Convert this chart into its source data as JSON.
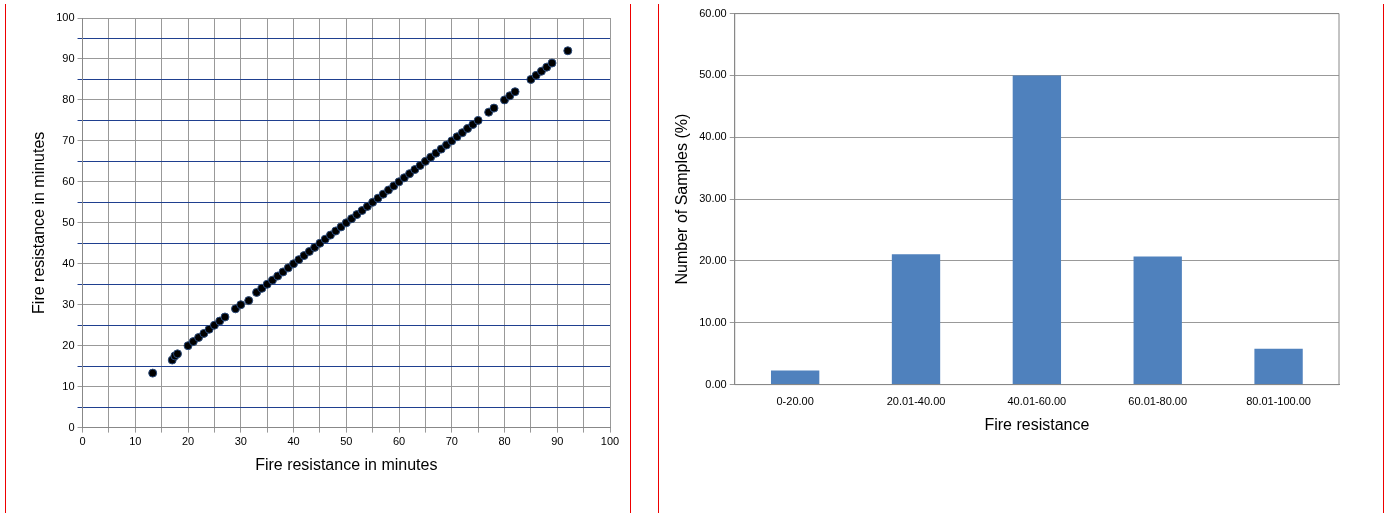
{
  "chart_data": [
    {
      "type": "scatter",
      "xlabel": "Fire resistance in minutes",
      "ylabel": "Fire resistance in minutes",
      "color": "#000000",
      "marker": "circle",
      "grid": true,
      "x": [
        13.3,
        17,
        17.5,
        18,
        20,
        21,
        22,
        23,
        24,
        25,
        26,
        27,
        29,
        30,
        31.5,
        33,
        34,
        35,
        36,
        37,
        38,
        39,
        40,
        41,
        42,
        43,
        44,
        45,
        46,
        47,
        48,
        49,
        50,
        51,
        52,
        53,
        54,
        55,
        56,
        57,
        58,
        59,
        60,
        61,
        62,
        63,
        64,
        65,
        66,
        67,
        68,
        69,
        70,
        71,
        72,
        73,
        74,
        75,
        77,
        78,
        80,
        81,
        82,
        85,
        86,
        87,
        88,
        89,
        92
      ],
      "values": [
        13.3,
        16.5,
        17.5,
        18,
        20,
        21,
        22,
        23,
        24,
        25,
        26,
        27,
        29,
        30,
        31,
        33,
        34,
        35,
        36,
        37,
        38,
        39,
        40,
        41,
        42,
        43,
        44,
        45,
        46,
        47,
        48,
        49,
        50,
        51,
        52,
        53,
        54,
        55,
        56,
        57,
        58,
        59,
        60,
        61,
        62,
        63,
        64,
        65,
        66,
        67,
        68,
        69,
        70,
        71,
        72,
        73,
        74,
        75,
        77,
        78,
        80,
        81,
        82,
        85,
        86,
        87,
        88,
        89,
        92
      ],
      "xlim": [
        0,
        100
      ],
      "ylim": [
        0,
        100
      ],
      "xticks": [
        0,
        {
          "value": 5,
          "label": null
        },
        10,
        {
          "value": 15,
          "label": null
        },
        20,
        {
          "value": 25,
          "label": null
        },
        30,
        {
          "value": 35,
          "label": null
        },
        40,
        {
          "value": 45,
          "label": null
        },
        50,
        {
          "value": 55,
          "label": null
        },
        60,
        {
          "value": 65,
          "label": null
        },
        70,
        {
          "value": 75,
          "label": null
        },
        80,
        {
          "value": 85,
          "label": null
        },
        90,
        {
          "value": 95,
          "label": null
        },
        100
      ],
      "yticks": [
        0,
        {
          "value": 5,
          "label": null
        },
        10,
        {
          "value": 15,
          "label": null
        },
        20,
        {
          "value": 25,
          "label": null
        },
        30,
        {
          "value": 35,
          "label": null
        },
        40,
        {
          "value": 45,
          "label": null
        },
        50,
        {
          "value": 55,
          "label": null
        },
        60,
        {
          "value": 65,
          "label": null
        },
        70,
        {
          "value": 75,
          "label": null
        },
        80,
        {
          "value": 85,
          "label": null
        },
        90,
        {
          "value": 95,
          "label": null
        },
        100
      ]
    },
    {
      "type": "bar",
      "xlabel": "Fire resistance",
      "ylabel": "Number of Samples (%)",
      "color": "#4f81bd",
      "grid": "y",
      "categories": [
        "0-20.00",
        "20.01-40.00",
        "40.01-60.00",
        "60.01-80.00",
        "80.01-100.00"
      ],
      "values": [
        2.3,
        21.1,
        50.0,
        20.7,
        5.8
      ],
      "ylim": [
        0,
        60
      ],
      "yticks": [
        {
          "value": 0,
          "label": "0.00"
        },
        {
          "value": 10,
          "label": "10.00"
        },
        {
          "value": 20,
          "label": "20.00"
        },
        {
          "value": 30,
          "label": "30.00"
        },
        {
          "value": 40,
          "label": "40.00"
        },
        {
          "value": 50,
          "label": "50.00"
        },
        {
          "value": 60,
          "label": "60.00"
        }
      ]
    }
  ]
}
